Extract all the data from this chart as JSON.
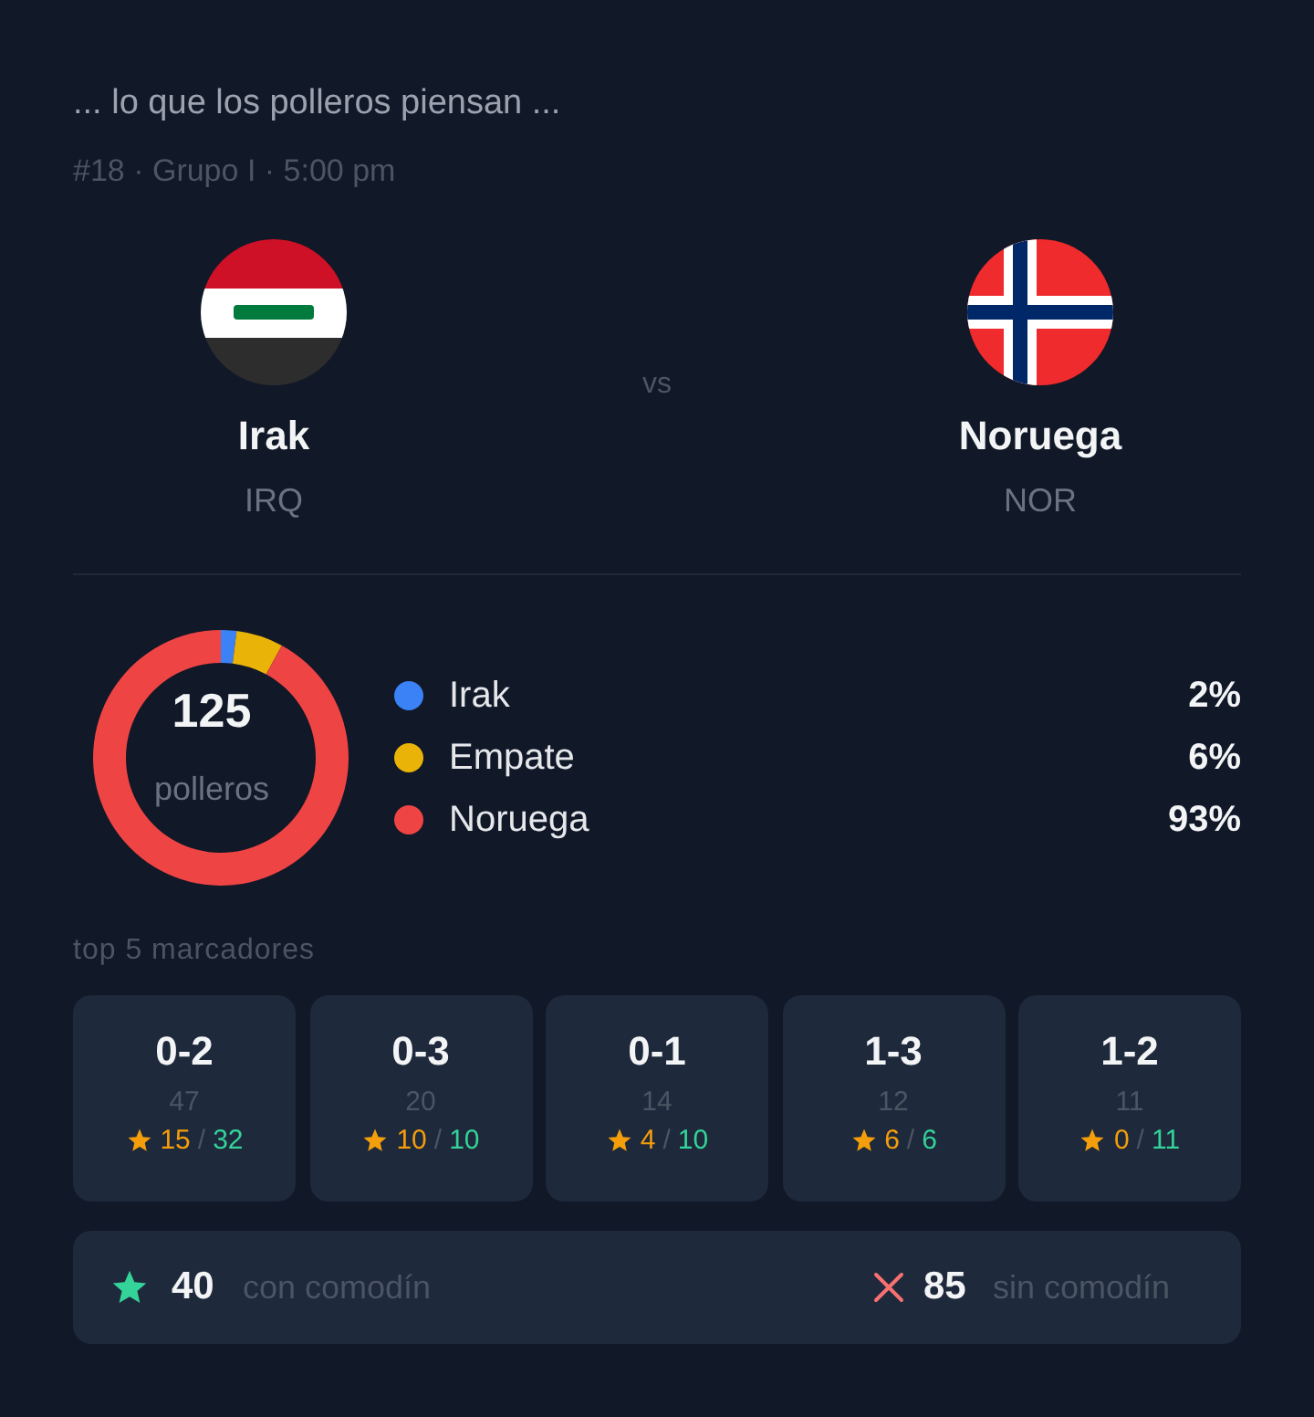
{
  "chart_data": {
    "type": "donut",
    "title": "... lo que los polleros piensan ...",
    "subtitle": "#18 · Grupo I · 5:00 pm",
    "categories": [
      "Irak",
      "Empate",
      "Noruega"
    ],
    "values": [
      2,
      6,
      93
    ],
    "colors": [
      "#3b82f6",
      "#eab308",
      "#ef4444"
    ],
    "value_labels": [
      "2%",
      "6%",
      "93%"
    ],
    "legend": "right",
    "annotations": [
      "Irak",
      "IRQ",
      "vs",
      "Noruega",
      "NOR",
      "125",
      "polleros",
      "top 5 marcadores",
      "0-2",
      "47",
      "15 / 32",
      "0-3",
      "20",
      "10 / 10",
      "0-1",
      "14",
      "4 / 10",
      "1-3",
      "12",
      "6 / 6",
      "1-2",
      "11",
      "0 / 11",
      "40",
      "con comodín",
      "85",
      "sin comodín"
    ]
  }
}
